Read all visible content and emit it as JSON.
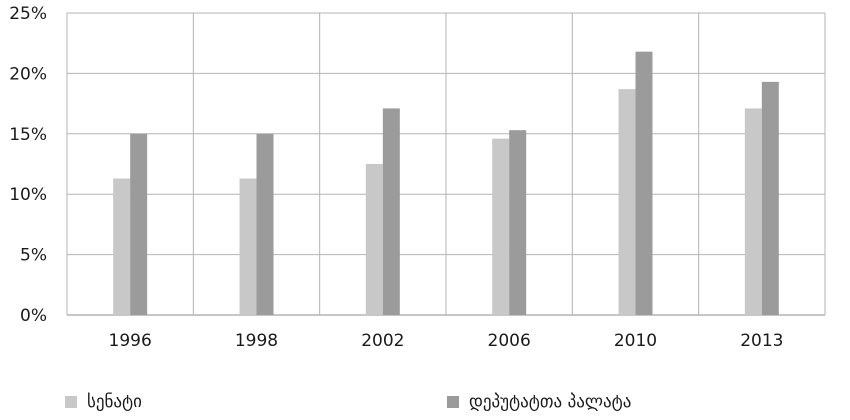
{
  "chart_data": {
    "type": "bar",
    "categories": [
      "1996",
      "1998",
      "2002",
      "2006",
      "2010",
      "2013"
    ],
    "series": [
      {
        "name": "სენატი",
        "color": "#c8c8c8",
        "values": [
          11.3,
          11.3,
          12.5,
          14.6,
          18.7,
          17.1
        ]
      },
      {
        "name": "დეპუტატთა პალატა",
        "color": "#9b9b9c",
        "values": [
          15.0,
          15.0,
          17.1,
          15.3,
          21.8,
          19.3
        ]
      }
    ],
    "ylim": [
      0,
      25
    ],
    "yticks": [
      0,
      5,
      10,
      15,
      20,
      25
    ],
    "ytick_labels": [
      "0%",
      "5%",
      "10%",
      "15%",
      "20%",
      "25%"
    ],
    "grid": true,
    "legend_position": "bottom"
  }
}
